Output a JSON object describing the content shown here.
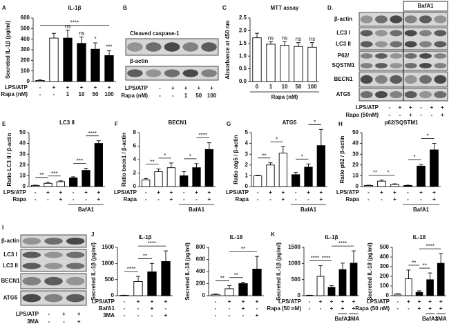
{
  "chart_data": [
    {
      "type": "bar",
      "panel": "A",
      "title": "IL-1β",
      "ylabel": "Secreted IL-1β (pg/ml)",
      "ylim": [
        0,
        600
      ],
      "yticks": [
        0,
        100,
        200,
        300,
        400,
        500,
        600
      ],
      "values": [
        10,
        410,
        410,
        360,
        305,
        245
      ],
      "errors": [
        5,
        45,
        75,
        60,
        60,
        45
      ],
      "colors": [
        "#ffffff",
        "#ffffff",
        "#000000",
        "#000000",
        "#000000",
        "#000000"
      ],
      "bar_labels": [
        null,
        null,
        "ns",
        "ns",
        "*",
        "***"
      ],
      "brackets": [
        {
          "from": 0,
          "to": 5,
          "label": "****"
        }
      ],
      "rows": [
        {
          "name": "LPS/ATP",
          "labels": [
            "-",
            "+",
            "+",
            "+",
            "+",
            "+"
          ]
        },
        {
          "name": "Rapa (nM)",
          "labels": [
            "-",
            "-",
            "1",
            "10",
            "50",
            "100"
          ]
        }
      ]
    },
    {
      "type": "bar",
      "panel": "C",
      "title": "MTT assay",
      "ylabel": "Absorbance at 450 nm",
      "ylim": [
        0,
        2.5
      ],
      "yticks": [
        {
          "value": 0,
          "label": "0.0"
        },
        0.5,
        {
          "value": 1,
          "label": "1.0"
        },
        1.5,
        {
          "value": 2,
          "label": "2.0"
        },
        2.5
      ],
      "categories": [
        "0",
        "1",
        "10",
        "50",
        "100"
      ],
      "xlabel": "Rapa (nM)",
      "values": [
        1.72,
        1.47,
        1.42,
        1.38,
        1.35
      ],
      "errors": [
        0.18,
        0.1,
        0.15,
        0.15,
        0.18
      ],
      "colors": [
        "#ffffff",
        "#ffffff",
        "#ffffff",
        "#ffffff",
        "#ffffff"
      ],
      "bar_labels": [
        null,
        "ns",
        "ns",
        "ns",
        "ns"
      ]
    },
    {
      "type": "bar",
      "panel": "E",
      "title": "LC3 II",
      "ylabel": "Ratio LC3 II / β-actin",
      "ylim": [
        0,
        50
      ],
      "yticks": [
        0,
        10,
        20,
        30,
        40,
        50
      ],
      "values": [
        1,
        3,
        4.5,
        8,
        15,
        40
      ],
      "errors": [
        0.3,
        0.8,
        0.8,
        1,
        2,
        2.5
      ],
      "colors": [
        "#ffffff",
        "#ffffff",
        "#ffffff",
        "#000000",
        "#000000",
        "#000000"
      ],
      "brackets": [
        {
          "from": 0,
          "to": 1,
          "label": "**"
        },
        {
          "from": 1,
          "to": 2,
          "label": "***"
        },
        {
          "from": 3,
          "to": 4,
          "label": "***"
        },
        {
          "from": 4,
          "to": 5,
          "label": "****"
        }
      ],
      "rows": [
        {
          "name": "LPS/ATP",
          "labels": [
            "-",
            "+",
            "+",
            "-",
            "+",
            "+"
          ]
        },
        {
          "name": "Rapa",
          "labels": [
            "-",
            "-",
            "+",
            "-",
            "-",
            "+"
          ]
        }
      ],
      "group_row": [
        null,
        null,
        null,
        null,
        "BafA1",
        null
      ]
    },
    {
      "type": "bar",
      "panel": "F",
      "title": "BECN1",
      "ylabel": "Ratio becn1 / β-actin",
      "ylim": [
        0,
        8
      ],
      "yticks": [
        0,
        2,
        4,
        6,
        8
      ],
      "values": [
        1,
        2.2,
        2.8,
        1.6,
        2.8,
        5.5
      ],
      "errors": [
        0.2,
        0.4,
        0.7,
        0.6,
        0.6,
        1
      ],
      "colors": [
        "#ffffff",
        "#ffffff",
        "#ffffff",
        "#000000",
        "#000000",
        "#000000"
      ],
      "brackets": [
        {
          "from": 0,
          "to": 1,
          "label": "**"
        },
        {
          "from": 1,
          "to": 2,
          "label": "*"
        },
        {
          "from": 3,
          "to": 4,
          "label": "*"
        },
        {
          "from": 4,
          "to": 5,
          "label": "****"
        }
      ],
      "rows": [
        {
          "name": "LPS/ATP",
          "labels": [
            "-",
            "+",
            "+",
            "-",
            "+",
            "+"
          ]
        },
        {
          "name": "Rapa",
          "labels": [
            "-",
            "-",
            "+",
            "-",
            "-",
            "+"
          ]
        }
      ],
      "group_row": [
        null,
        null,
        null,
        null,
        "BafA1",
        null
      ]
    },
    {
      "type": "bar",
      "panel": "G",
      "title": "ATG5",
      "ylabel": "Ratio atg5 / β-actin",
      "ylim": [
        0,
        5
      ],
      "yticks": [
        0,
        1,
        2,
        3,
        4,
        5
      ],
      "values": [
        1,
        2,
        3.1,
        1.1,
        1.8,
        3.8
      ],
      "errors": [
        0.05,
        0.2,
        0.6,
        0.2,
        0.3,
        1.5
      ],
      "colors": [
        "#ffffff",
        "#ffffff",
        "#ffffff",
        "#000000",
        "#000000",
        "#000000"
      ],
      "brackets": [
        {
          "from": 0,
          "to": 1,
          "label": "**"
        },
        {
          "from": 1,
          "to": 2,
          "label": "*"
        },
        {
          "from": 3,
          "to": 4,
          "label": "*"
        },
        {
          "from": 4,
          "to": 5,
          "label": "*"
        }
      ],
      "rows": [
        {
          "name": "LPS/ATP",
          "labels": [
            "-",
            "+",
            "+",
            "-",
            "+",
            "+"
          ]
        },
        {
          "name": "Rapa",
          "labels": [
            "-",
            "-",
            "+",
            "-",
            "-",
            "+"
          ]
        }
      ],
      "group_row": [
        null,
        null,
        null,
        null,
        "BafA1",
        null
      ]
    },
    {
      "type": "bar",
      "panel": "H",
      "title": "p62/SQSTM1",
      "ylabel": "Ratio p62 / β-actin",
      "ylim": [
        0,
        50
      ],
      "yticks": [
        0,
        10,
        20,
        30,
        40,
        50
      ],
      "values": [
        1,
        5,
        2,
        1,
        19,
        34
      ],
      "errors": [
        0.3,
        1,
        0.5,
        0.3,
        1.5,
        6
      ],
      "colors": [
        "#ffffff",
        "#ffffff",
        "#ffffff",
        "#000000",
        "#000000",
        "#000000"
      ],
      "brackets": [
        {
          "from": 0,
          "to": 1,
          "label": "**"
        },
        {
          "from": 1,
          "to": 2,
          "label": "*"
        },
        {
          "from": 3,
          "to": 4,
          "label": "*"
        },
        {
          "from": 4,
          "to": 5,
          "label": "*"
        }
      ],
      "rows": [
        {
          "name": "LPS/ATP",
          "labels": [
            "-",
            "+",
            "+",
            "-",
            "+",
            "+"
          ]
        },
        {
          "name": "Rapa",
          "labels": [
            "-",
            "-",
            "+",
            "-",
            "-",
            "+"
          ]
        }
      ],
      "group_row": [
        null,
        null,
        null,
        null,
        "BafA1",
        null
      ]
    },
    {
      "type": "bar",
      "panel": "J",
      "title": "IL-1β",
      "ylabel": "Secreted IL-1β (pg/ml)",
      "ylim": [
        0,
        1500
      ],
      "yticks": [
        0,
        500,
        1000,
        1500
      ],
      "values": [
        10,
        440,
        740,
        1060
      ],
      "errors": [
        5,
        160,
        260,
        330
      ],
      "colors": [
        "#ffffff",
        "#ffffff",
        "#000000",
        "#000000"
      ],
      "brackets": [
        {
          "from": 0,
          "to": 1,
          "label": "****"
        },
        {
          "from": 1,
          "to": 2,
          "label": "**"
        },
        {
          "from": 1,
          "to": 3,
          "label": "****"
        }
      ],
      "rows": [
        {
          "name": "LPS/ATP",
          "labels": [
            "-",
            "+",
            "+",
            "+"
          ]
        },
        {
          "name": "BafA1",
          "labels": [
            "-",
            "-",
            "+",
            "-"
          ]
        },
        {
          "name": "3MA",
          "labels": [
            "-",
            "-",
            "-",
            "+"
          ]
        }
      ]
    },
    {
      "type": "bar",
      "title": "IL-18",
      "ylabel": "Secreted IL-18 (pg/ml)",
      "ylim": [
        0,
        800
      ],
      "yticks": [
        0,
        200,
        400,
        600,
        800
      ],
      "values": [
        20,
        115,
        200,
        440
      ],
      "errors": [
        10,
        50,
        20,
        210
      ],
      "colors": [
        "#ffffff",
        "#ffffff",
        "#000000",
        "#000000"
      ],
      "brackets": [
        {
          "from": 0,
          "to": 1,
          "label": "**"
        },
        {
          "from": 1,
          "to": 2,
          "label": "**"
        },
        {
          "from": 1,
          "to": 3,
          "label": "**"
        }
      ],
      "rows": [
        {
          "labels": [
            "-",
            "+",
            "+",
            "+"
          ]
        },
        {
          "labels": [
            "-",
            "-",
            "+",
            "-"
          ]
        },
        {
          "labels": [
            "-",
            "-",
            "-",
            "+"
          ]
        }
      ]
    },
    {
      "type": "bar",
      "panel": "K",
      "title": "IL-1β",
      "ylabel": "Secreted IL-1β (pg/ml)",
      "ylim": [
        0,
        1500
      ],
      "yticks": [
        0,
        500,
        1000,
        1500
      ],
      "values": [
        10,
        600,
        260,
        810,
        1010
      ],
      "errors": [
        5,
        330,
        50,
        200,
        380
      ],
      "colors": [
        "#ffffff",
        "#ffffff",
        "#000000",
        "#000000",
        "#000000"
      ],
      "brackets": [
        {
          "from": 0,
          "to": 1,
          "label": "****"
        },
        {
          "from": 1,
          "to": 2,
          "label": "****"
        },
        {
          "from": 2,
          "to": 4,
          "label": "****"
        }
      ],
      "rows": [
        {
          "name": "LPS/ATP",
          "labels": [
            "-",
            "+",
            "+",
            "+",
            "+"
          ]
        },
        {
          "name": "Rapa (50 nM)",
          "labels": [
            "-",
            "-",
            "+",
            "+",
            "+"
          ]
        }
      ],
      "group_row": [
        null,
        null,
        null,
        "BafA1",
        "3MA"
      ]
    },
    {
      "type": "bar",
      "title": "IL-18",
      "ylabel": "Secreted IL-18 (pg/ml)",
      "ylim": [
        0,
        500
      ],
      "yticks": [
        0,
        100,
        200,
        300,
        400,
        500
      ],
      "values": [
        15,
        175,
        35,
        165,
        335
      ],
      "errors": [
        5,
        90,
        15,
        70,
        100
      ],
      "colors": [
        "#ffffff",
        "#ffffff",
        "#000000",
        "#000000",
        "#000000"
      ],
      "brackets": [
        {
          "from": 1,
          "to": 2,
          "label": "**"
        },
        {
          "from": 2,
          "to": 3,
          "label": "**"
        },
        {
          "from": 2,
          "to": 4,
          "label": "****"
        }
      ],
      "rows": [
        {
          "name": "LPS/ATP",
          "labels": [
            "-",
            "+",
            "+",
            "+",
            "+"
          ]
        },
        {
          "name": "Rapa (50 nM)",
          "labels": [
            "-",
            "-",
            "+",
            "+",
            "+"
          ]
        }
      ],
      "group_row": [
        null,
        null,
        null,
        "BafA1",
        "3MA"
      ]
    }
  ],
  "blots": [
    {
      "panel": "B",
      "bands": [
        [
          "Cleaved caspase-1"
        ],
        [
          "β-actin"
        ]
      ],
      "rows": [
        {
          "name": "LPS/ATP",
          "labels": [
            "-",
            "+",
            "+",
            "+",
            "+"
          ]
        },
        {
          "name": "Rapa (nM)",
          "labels": [
            "-",
            "-",
            "1",
            "50",
            "100"
          ]
        }
      ]
    },
    {
      "panel": "D.",
      "header": "BafA1",
      "bands": [
        [
          "β-actin"
        ],
        [
          "LC3 I",
          "LC3 II"
        ],
        [
          "P62/",
          "SQSTM1"
        ],
        [
          "BECN1"
        ],
        [
          "ATG5"
        ]
      ],
      "rows": [
        {
          "name": "LPS/ATP",
          "labels": [
            "-",
            "+",
            "+",
            "-",
            "+",
            "+"
          ]
        },
        {
          "name": "Rapa (50nM)",
          "labels": [
            "-",
            "-",
            "+",
            "-",
            "-",
            "+"
          ]
        }
      ]
    },
    {
      "panel": "I",
      "bands": [
        [
          "β-actin"
        ],
        [
          "LC3 I",
          "LC3 II"
        ],
        [
          "BECN1"
        ],
        [
          "ATG5"
        ]
      ],
      "rows": [
        {
          "name": "LPS/ATP",
          "labels": [
            "-",
            "+",
            "+"
          ]
        },
        {
          "name": "3MA",
          "labels": [
            "-",
            "-",
            "+"
          ]
        }
      ]
    }
  ]
}
